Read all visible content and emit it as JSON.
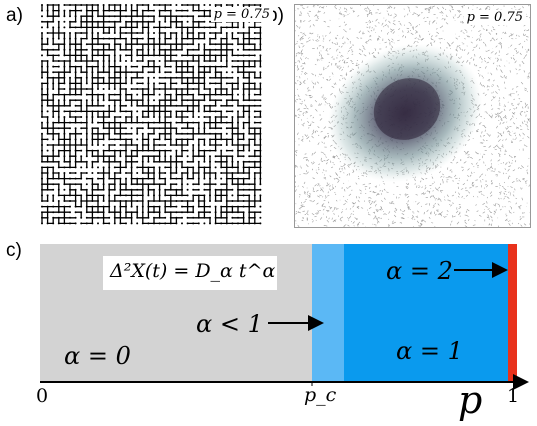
{
  "panel_labels": {
    "a": "a)",
    "b": "b)",
    "c": "c)"
  },
  "panel_a": {
    "p_label": "p = 0.75"
  },
  "panel_b": {
    "p_label": "p = 0.75"
  },
  "panel_c": {
    "equation": "Δ²X(t) = D_α t^α",
    "regions": [
      {
        "label": "α = 0",
        "color": "#d3d3d3"
      },
      {
        "label": "α < 1",
        "color": "#5bb8f5"
      },
      {
        "label": "α = 1",
        "color": "#0a9aee"
      },
      {
        "label": "α = 2",
        "color": "#e8321c"
      }
    ],
    "axis": {
      "start_label": "0",
      "pc_label": "p_c",
      "end_label": "1",
      "axis_label": "p"
    }
  }
}
